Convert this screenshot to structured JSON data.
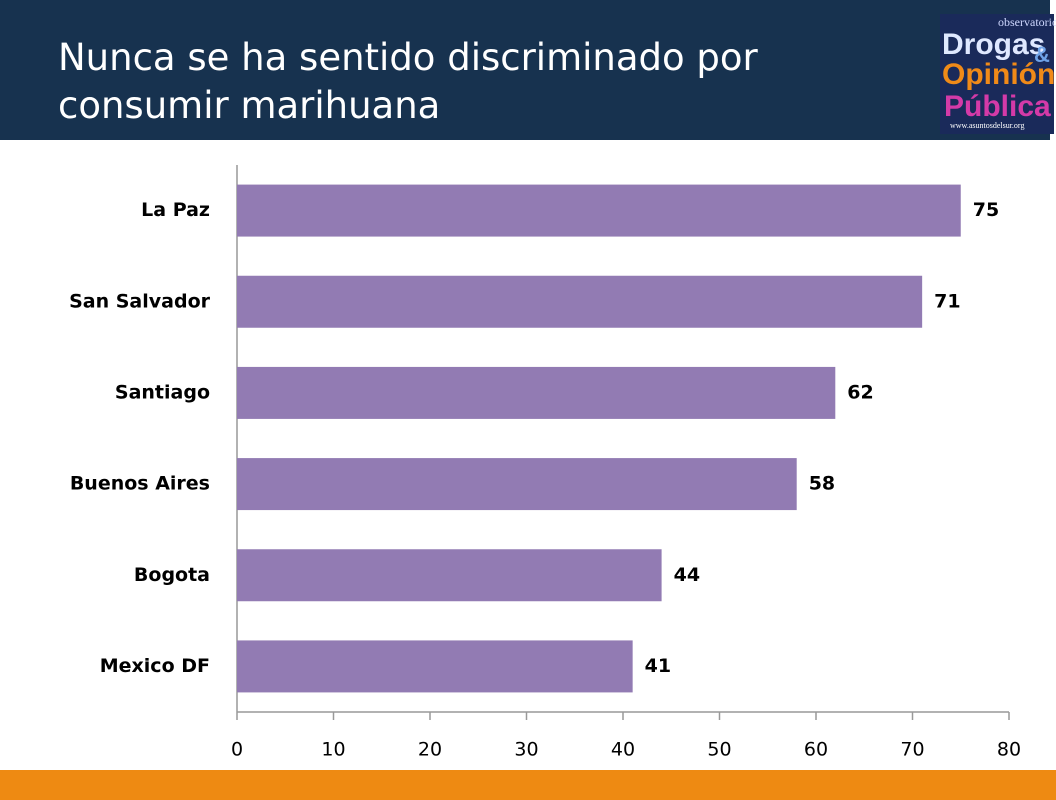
{
  "chart_data": {
    "type": "bar",
    "orientation": "horizontal",
    "title": "Nunca se ha sentido discriminado por consumir marihuana",
    "categories": [
      "La Paz",
      "San Salvador",
      "Santiago",
      "Buenos Aires",
      "Bogota",
      "Mexico DF"
    ],
    "values": [
      75,
      71,
      62,
      58,
      44,
      41
    ],
    "color": "#927bb3",
    "xlim": [
      0,
      80
    ],
    "xticks": [
      0,
      10,
      20,
      30,
      40,
      50,
      60,
      70,
      80
    ]
  },
  "logo": {
    "top": "observatorio",
    "line1": "Drogas",
    "amp": "&",
    "line2": "Opinión",
    "line3": "Pública",
    "url": "www.asuntosdelsur.org"
  }
}
